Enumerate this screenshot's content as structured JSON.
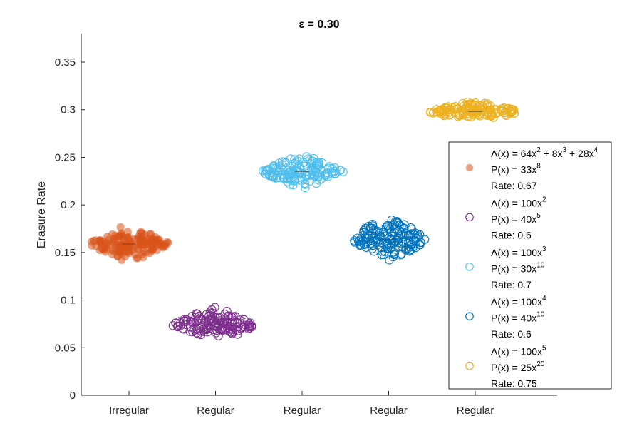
{
  "chart_data": {
    "type": "scatter",
    "title": "ε = 0.30",
    "xlabel": "",
    "ylabel": "Erasure Rate",
    "ylim": [
      0,
      0.38
    ],
    "yticks": [
      "0",
      "0.05",
      "0.1",
      "0.15",
      "0.2",
      "0.25",
      "0.3",
      "0.35"
    ],
    "categories": [
      "Irregular",
      "Regular",
      "Regular",
      "Regular",
      "Regular"
    ],
    "grid": false,
    "legend_position": "right",
    "series": [
      {
        "category_index": 0,
        "color": "#D95319",
        "marker": "filled-circle",
        "median": 0.159,
        "min": 0.137,
        "max": 0.178,
        "spread": 0.19,
        "legend_lines": [
          {
            "pre": "Λ(x) = 64x",
            "exps": [
              "2",
              " + 8x",
              "3",
              " + 28x",
              "4"
            ]
          },
          {
            "pre": "P(x) = 33x",
            "exps": [
              "8"
            ]
          },
          {
            "pre": "Rate: 0.67",
            "exps": []
          }
        ]
      },
      {
        "category_index": 1,
        "color": "#7E2F8E",
        "marker": "open-circle",
        "median": 0.074,
        "min": 0.061,
        "max": 0.095,
        "spread": 0.2,
        "legend_lines": [
          {
            "pre": "Λ(x) = 100x",
            "exps": [
              "2"
            ]
          },
          {
            "pre": "P(x) = 40x",
            "exps": [
              "5"
            ]
          },
          {
            "pre": "Rate: 0.6",
            "exps": []
          }
        ]
      },
      {
        "category_index": 2,
        "color": "#4DBEEE",
        "marker": "open-circle",
        "median": 0.235,
        "min": 0.215,
        "max": 0.255,
        "spread": 0.19,
        "legend_lines": [
          {
            "pre": "Λ(x) = 100x",
            "exps": [
              "3"
            ]
          },
          {
            "pre": "P(x) = 30x",
            "exps": [
              "10"
            ]
          },
          {
            "pre": "Rate: 0.7",
            "exps": []
          }
        ]
      },
      {
        "category_index": 3,
        "color": "#0072BD",
        "marker": "open-circle",
        "median": 0.164,
        "min": 0.137,
        "max": 0.192,
        "spread": 0.18,
        "legend_lines": [
          {
            "pre": "Λ(x) = 100x",
            "exps": [
              "4"
            ]
          },
          {
            "pre": "P(x) = 40x",
            "exps": [
              "10"
            ]
          },
          {
            "pre": "Rate: 0.6",
            "exps": []
          }
        ]
      },
      {
        "category_index": 4,
        "color": "#EDB120",
        "marker": "open-circle",
        "median": 0.298,
        "min": 0.288,
        "max": 0.31,
        "spread": 0.22,
        "legend_lines": [
          {
            "pre": "Λ(x) = 100x",
            "exps": [
              "5"
            ]
          },
          {
            "pre": "P(x) = 25x",
            "exps": [
              "20"
            ]
          },
          {
            "pre": "Rate: 0.75",
            "exps": []
          }
        ]
      }
    ]
  }
}
